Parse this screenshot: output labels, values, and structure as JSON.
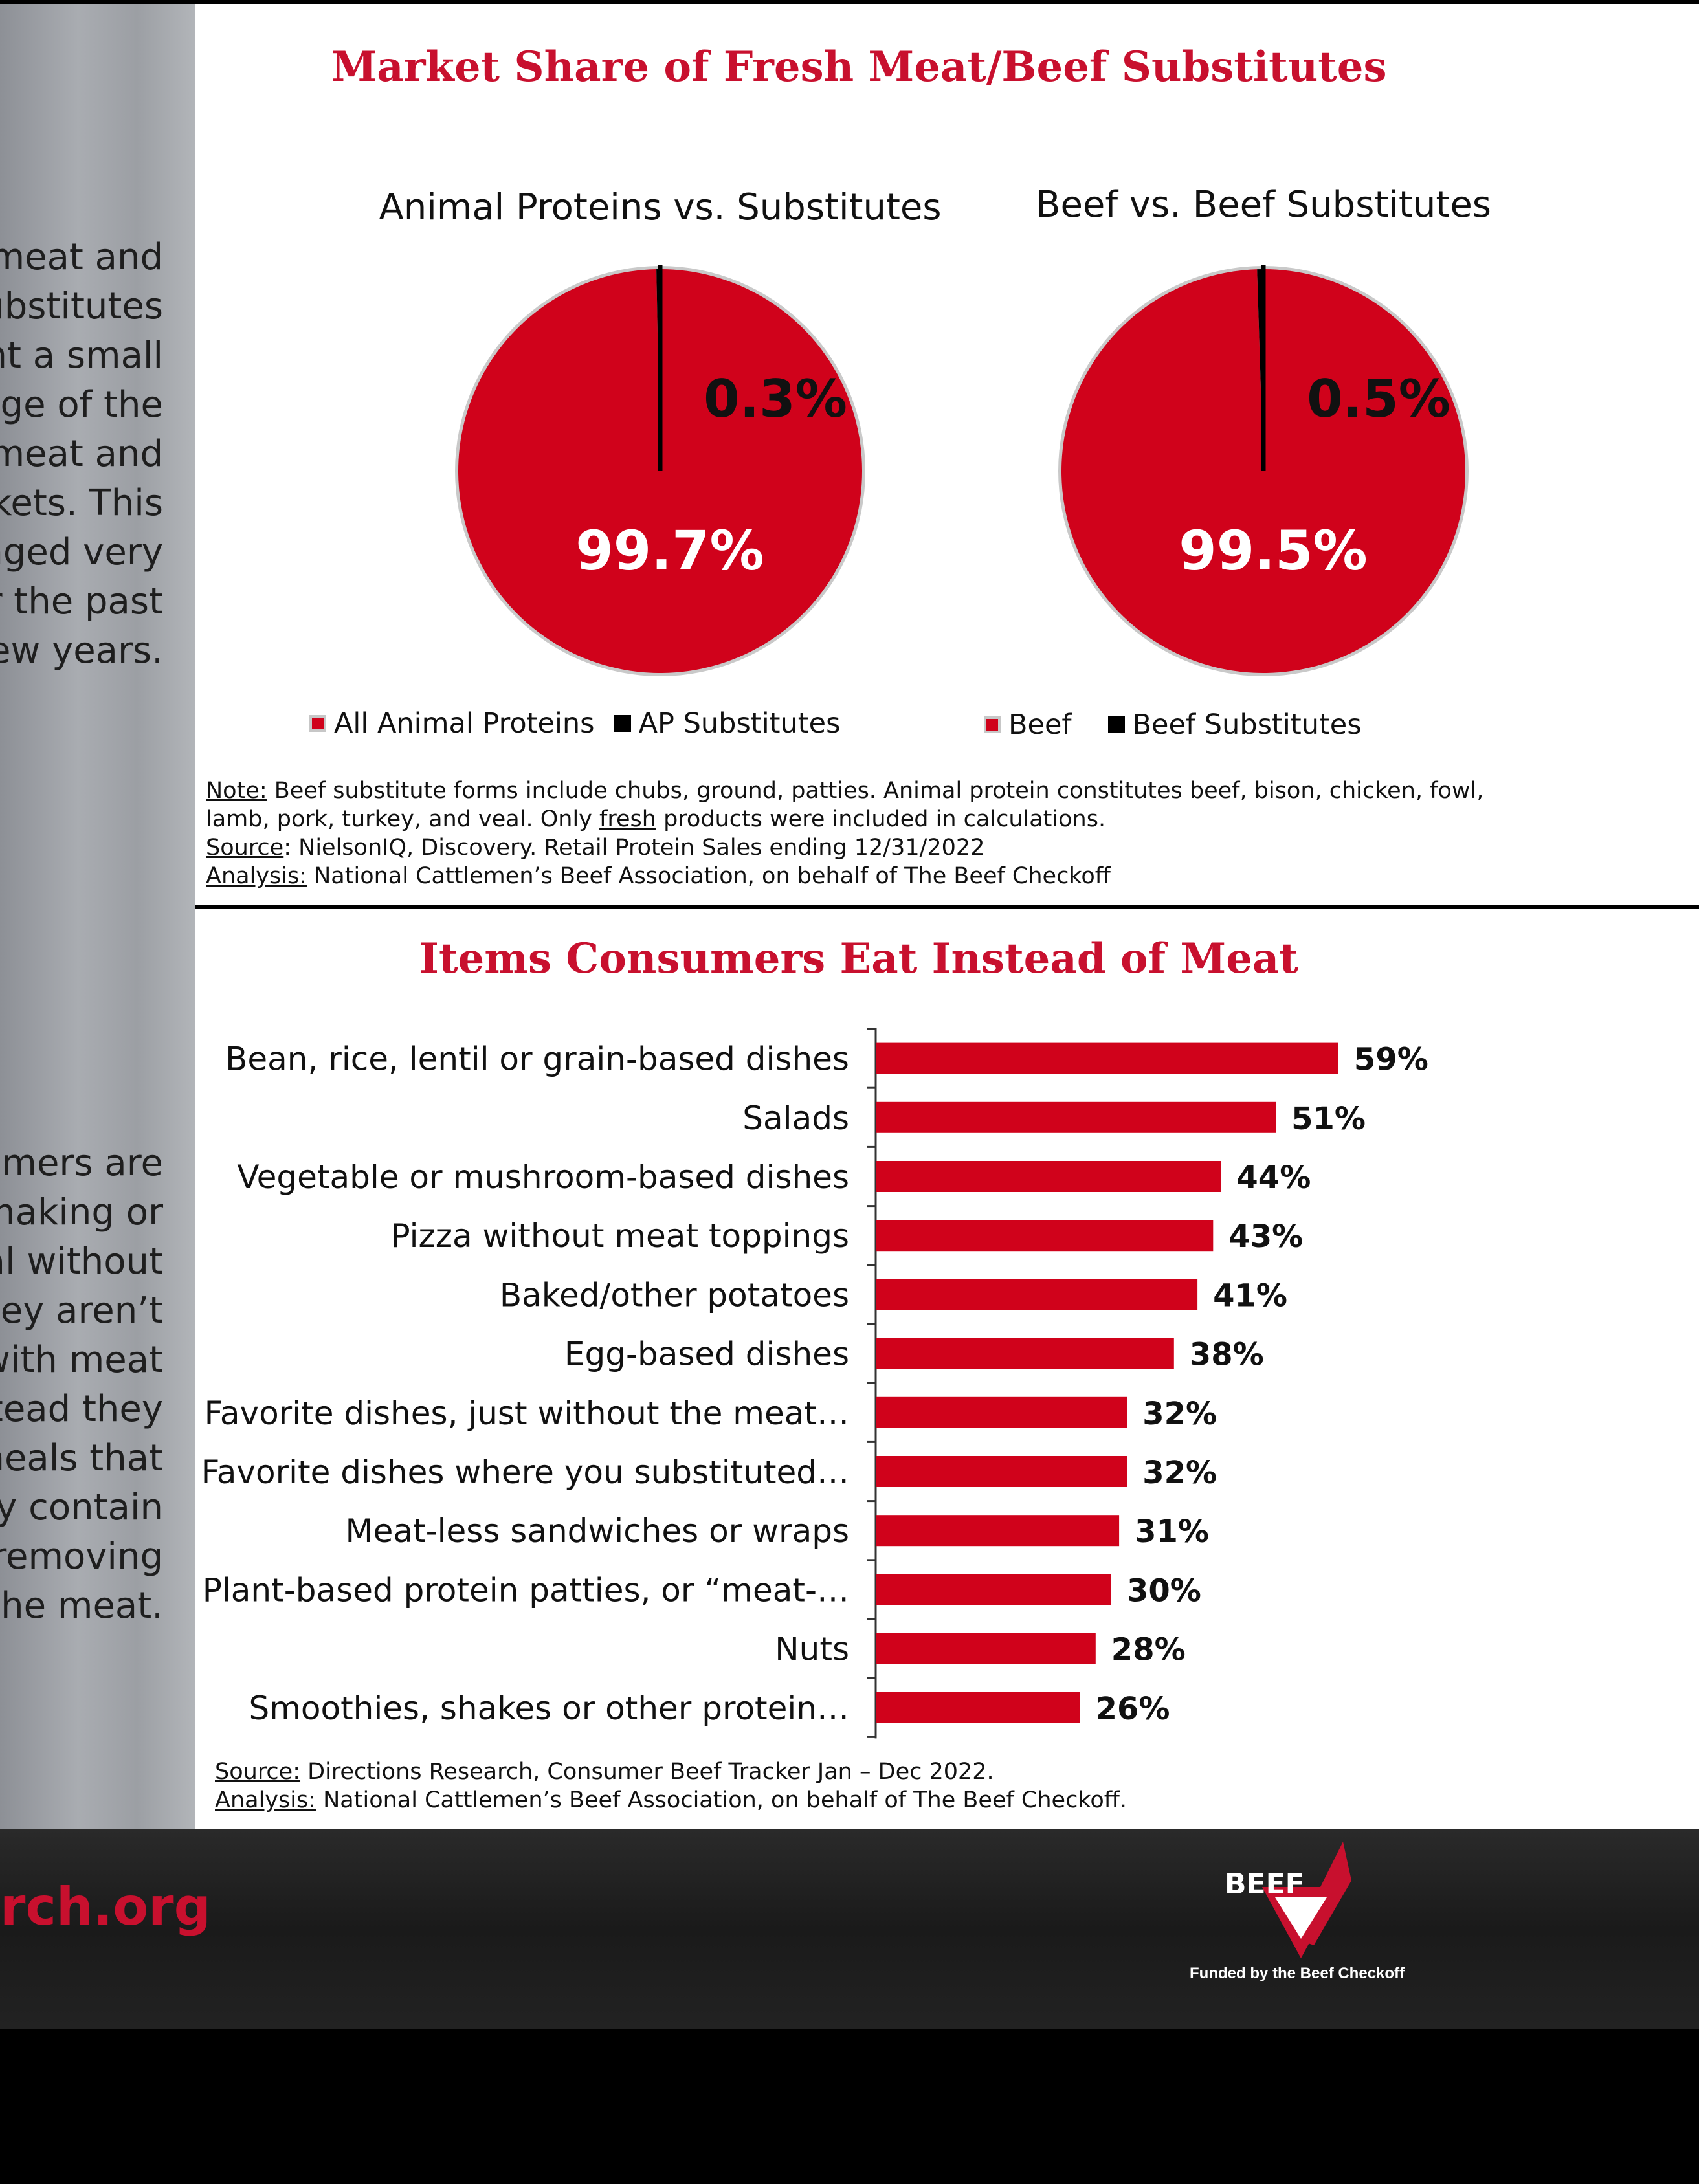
{
  "sidebar": {
    "top_text": "meat and\nubstitutes\nnt a small\nage of the\nmeat and\nkets. This\nnged very\nr the past\new years.",
    "bottom_text": "umers are\nmaking or\nal without\nhey aren’t\nwith meat\ntead they\nmeals that\nly contain\nremoving\nthe meat."
  },
  "top_panel": {
    "title": "Market Share of Fresh Meat/Beef Substitutes",
    "note": {
      "note_label": "Note:",
      "note_line1": " Beef substitute forms include chubs, ground, patties. Animal protein constitutes beef, bison, chicken, fowl,",
      "note_line2_a": "lamb, pork, turkey, and veal. Only ",
      "note_line2_fresh": "fresh",
      "note_line2_b": " products were included in calculations.",
      "source_label": "Source",
      "source_text": ": NielsonIQ, Discovery. Retail Protein Sales ending 12/31/2022",
      "analysis_label": "Analysis:",
      "analysis_text": " National Cattlemen’s Beef Association, on behalf of The Beef Checkoff"
    }
  },
  "bottom_panel": {
    "title": "Items Consumers Eat Instead of Meat",
    "source_label": "Source:",
    "source_text": " Directions Research, Consumer Beef Tracker Jan – Dec 2022.",
    "analysis_label": "Analysis:",
    "analysis_text": " National Cattlemen’s Beef Association, on behalf of The Beef Checkoff."
  },
  "footer": {
    "site": "rch.org",
    "logo_word": "BEEF",
    "funded_text": "Funded by the Beef Checkoff"
  },
  "colors": {
    "red": "#d0021b",
    "black": "#000000",
    "title_red": "#c8102e"
  },
  "chart_data": [
    {
      "type": "pie",
      "title": "Animal Proteins vs. Substitutes",
      "labels": [
        "All Animal Proteins",
        "AP Substitutes"
      ],
      "values": [
        99.7,
        0.3
      ],
      "data_labels": [
        "99.7%",
        "0.3%"
      ],
      "colors": [
        "#d0021b",
        "#000000"
      ],
      "legend": "bottom"
    },
    {
      "type": "pie",
      "title": "Beef vs. Beef Substitutes",
      "labels": [
        "Beef",
        "Beef Substitutes"
      ],
      "values": [
        99.5,
        0.5
      ],
      "data_labels": [
        "99.5%",
        "0.5%"
      ],
      "colors": [
        "#d0021b",
        "#000000"
      ],
      "legend": "bottom"
    },
    {
      "type": "bar",
      "orientation": "horizontal",
      "title": "Items Consumers Eat Instead of Meat",
      "categories": [
        "Bean, rice, lentil or grain-based dishes",
        "Salads",
        "Vegetable or mushroom-based dishes",
        "Pizza without meat toppings",
        "Baked/other potatoes",
        "Egg-based dishes",
        "Favorite dishes, just without the meat…",
        "Favorite dishes where you substituted…",
        "Meat-less sandwiches or wraps",
        "Plant-based protein patties, or “meat-…",
        "Nuts",
        "Smoothies, shakes or other protein…"
      ],
      "values": [
        59,
        51,
        44,
        43,
        41,
        38,
        32,
        32,
        31,
        30,
        28,
        26
      ],
      "data_labels": [
        "59%",
        "51%",
        "44%",
        "43%",
        "41%",
        "38%",
        "32%",
        "32%",
        "31%",
        "30%",
        "28%",
        "26%"
      ],
      "color": "#d0021b",
      "grid": false
    }
  ]
}
